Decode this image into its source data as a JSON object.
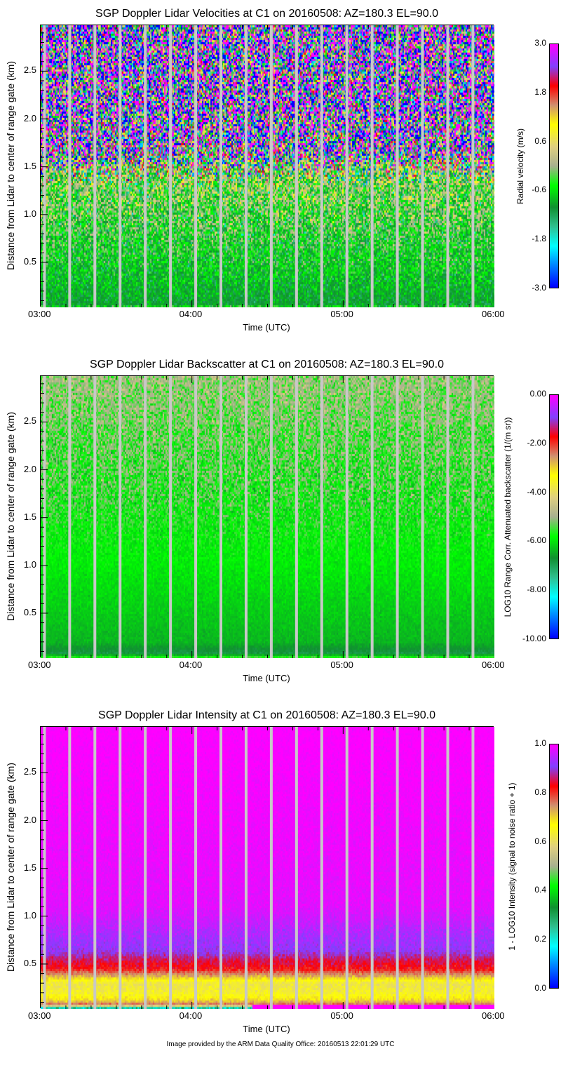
{
  "footer": "Image provided by the ARM Data Quality Office: 20160513 22:01:29 UTC",
  "chart_data": [
    {
      "type": "heatmap",
      "title": "SGP Doppler Lidar Velocities at C1 on 20160508: AZ=180.3 EL=90.0",
      "xlabel": "Time (UTC)",
      "ylabel": "Distance from Lidar to center of range gate (km)",
      "xticks": [
        "03:00",
        "04:00",
        "05:00",
        "06:00"
      ],
      "yticks": [
        "0.5",
        "1.0",
        "1.5",
        "2.0",
        "2.5"
      ],
      "xlim": [
        "03:00",
        "06:00"
      ],
      "ylim": [
        0.03,
        2.98
      ],
      "colorbar": {
        "label": "Radial velocity (m/s)",
        "range": [
          -3.0,
          3.0
        ],
        "ticks": [
          "3.0",
          "1.8",
          "0.6",
          "-0.6",
          "-1.8",
          "-3.0"
        ]
      },
      "profile": [
        [
          0.03,
          -0.4,
          0.6
        ],
        [
          0.06,
          -1.0,
          0.2
        ],
        [
          1.3,
          -0.2,
          0.9
        ],
        [
          1.5,
          0.0,
          2.0
        ],
        [
          1.7,
          0.0,
          3.5
        ],
        [
          2.98,
          0.0,
          4.0
        ]
      ],
      "gap_times": [
        "03:01",
        "03:11",
        "03:21",
        "03:31",
        "03:41",
        "03:51",
        "04:01",
        "04:11",
        "04:21",
        "04:31",
        "04:41",
        "04:51",
        "05:01",
        "05:11",
        "05:21",
        "05:31",
        "05:41",
        "05:51"
      ]
    },
    {
      "type": "heatmap",
      "title": "SGP Doppler Lidar Backscatter at C1 on 20160508: AZ=180.3 EL=90.0",
      "xlabel": "Time (UTC)",
      "ylabel": "Distance from Lidar to center of range gate (km)",
      "xticks": [
        "03:00",
        "04:00",
        "05:00",
        "06:00"
      ],
      "yticks": [
        "0.5",
        "1.0",
        "1.5",
        "2.0",
        "2.5"
      ],
      "xlim": [
        "03:00",
        "06:00"
      ],
      "ylim": [
        0.03,
        2.98
      ],
      "colorbar": {
        "label": "LOG10 Range Corr. Attenuated backscatter (1/(m sr))",
        "range": [
          -10.0,
          0.0
        ],
        "ticks": [
          "0.00",
          "-2.00",
          "-4.00",
          "-6.00",
          "-8.00",
          "-10.00"
        ]
      },
      "profile": [
        [
          0.03,
          -5.2,
          0.3
        ],
        [
          0.08,
          -6.9,
          0.1
        ],
        [
          0.2,
          -6.4,
          0.1
        ],
        [
          1.1,
          -5.9,
          0.15
        ],
        [
          1.8,
          -5.6,
          0.6
        ],
        [
          2.98,
          -5.0,
          0.5
        ]
      ],
      "gap_times": [
        "03:01",
        "03:11",
        "03:21",
        "03:31",
        "03:41",
        "03:51",
        "04:01",
        "04:11",
        "04:21",
        "04:31",
        "04:41",
        "04:51",
        "05:01",
        "05:11",
        "05:21",
        "05:31",
        "05:41",
        "05:51"
      ]
    },
    {
      "type": "heatmap",
      "title": "SGP Doppler Lidar Intensity at C1 on 20160508: AZ=180.3 EL=90.0",
      "xlabel": "Time (UTC)",
      "ylabel": "Distance from Lidar to center of range gate (km)",
      "xticks": [
        "03:00",
        "04:00",
        "05:00",
        "06:00"
      ],
      "yticks": [
        "0.5",
        "1.0",
        "1.5",
        "2.0",
        "2.5"
      ],
      "xlim": [
        "03:00",
        "06:00"
      ],
      "ylim": [
        0.03,
        2.98
      ],
      "colorbar": {
        "label": "1 - LOG10 Intensity (signal to noise ratio + 1)",
        "range": [
          0.0,
          1.0
        ],
        "ticks": [
          "1.0",
          "0.8",
          "0.6",
          "0.4",
          "0.2",
          "0.0"
        ]
      },
      "profile": [
        [
          0.03,
          0.0,
          0.05
        ],
        [
          0.08,
          0.78,
          0.02
        ],
        [
          0.12,
          0.7,
          0.02
        ],
        [
          0.2,
          0.64,
          0.02
        ],
        [
          0.3,
          0.62,
          0.02
        ],
        [
          0.37,
          0.72,
          0.02
        ],
        [
          0.45,
          0.82,
          0.02
        ],
        [
          0.55,
          0.86,
          0.02
        ],
        [
          0.65,
          0.92,
          0.02
        ],
        [
          1.1,
          0.98,
          0.01
        ],
        [
          2.98,
          1.0,
          0.01
        ]
      ],
      "gap_times": [
        "03:01",
        "03:11",
        "03:21",
        "03:31",
        "03:41",
        "03:51",
        "04:01",
        "04:11",
        "04:21",
        "04:31",
        "04:41",
        "04:51",
        "05:01",
        "05:11",
        "05:21",
        "05:31",
        "05:41",
        "05:51"
      ]
    }
  ]
}
